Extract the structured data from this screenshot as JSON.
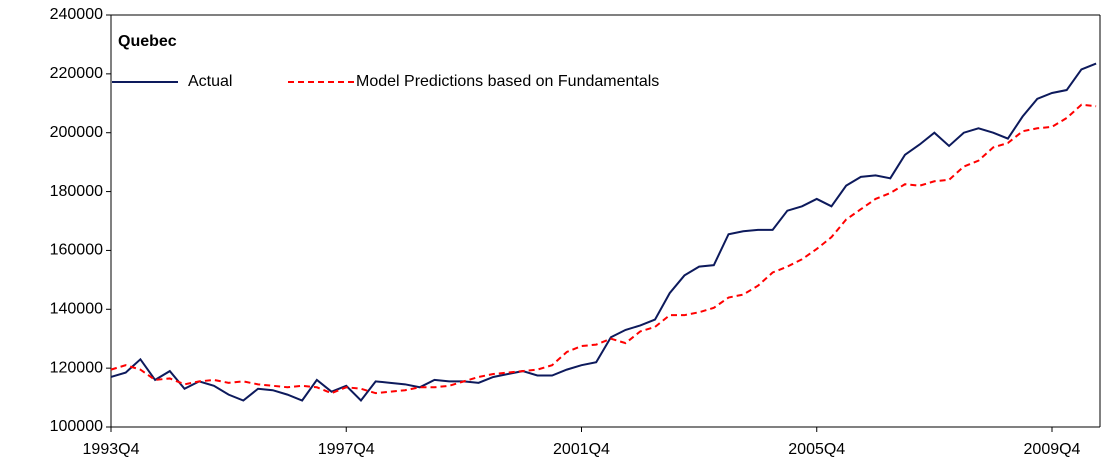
{
  "chart_data": {
    "type": "line",
    "title": "Quebec",
    "categories": [
      "1993Q4",
      null,
      null,
      null,
      null,
      null,
      null,
      null,
      null,
      null,
      null,
      null,
      null,
      null,
      null,
      null,
      "1997Q4",
      null,
      null,
      null,
      null,
      null,
      null,
      null,
      null,
      null,
      null,
      null,
      null,
      null,
      null,
      null,
      "2001Q4",
      null,
      null,
      null,
      null,
      null,
      null,
      null,
      null,
      null,
      null,
      null,
      null,
      null,
      null,
      null,
      "2005Q4",
      null,
      null,
      null,
      null,
      null,
      null,
      null,
      null,
      null,
      null,
      null,
      null,
      null,
      null,
      null,
      "2009Q4",
      null,
      null,
      null
    ],
    "series": [
      {
        "name": "Actual",
        "color": "#0d1a5c",
        "dash": false,
        "values": [
          117000,
          118500,
          123000,
          116000,
          119000,
          113000,
          115500,
          114000,
          111000,
          109000,
          113000,
          112500,
          111000,
          109000,
          116000,
          112000,
          114000,
          109000,
          115500,
          115000,
          114500,
          113500,
          116000,
          115500,
          115500,
          115000,
          117000,
          118000,
          119000,
          117500,
          117500,
          119500,
          121000,
          122000,
          130500,
          133000,
          134500,
          136500,
          145500,
          151500,
          154500,
          155000,
          165500,
          166500,
          167000,
          167000,
          173500,
          175000,
          177500,
          175000,
          182000,
          185000,
          185500,
          184500,
          192500,
          196000,
          200000,
          195500,
          200000,
          201500,
          200000,
          198000,
          205500,
          211500,
          213500,
          214500,
          221500,
          223500
        ]
      },
      {
        "name": "Model Predictions based on Fundamentals",
        "color": "#ff0000",
        "dash": true,
        "values": [
          119500,
          121000,
          119500,
          116000,
          116500,
          114500,
          115500,
          116000,
          115000,
          115500,
          114500,
          114000,
          113500,
          114000,
          113500,
          111500,
          113500,
          113000,
          111500,
          112000,
          112500,
          113500,
          113500,
          114000,
          115500,
          117000,
          118000,
          118500,
          119000,
          119500,
          121000,
          125500,
          127500,
          128000,
          130000,
          128500,
          132500,
          134000,
          138000,
          138000,
          139000,
          140500,
          144000,
          145000,
          148000,
          152500,
          154500,
          157000,
          160500,
          164500,
          170500,
          174000,
          177500,
          179500,
          182500,
          182000,
          183500,
          184000,
          188500,
          190500,
          195000,
          196500,
          200500,
          201500,
          202000,
          205000,
          209500,
          209000
        ]
      }
    ],
    "ylim": [
      100000,
      240000
    ],
    "yticks": [
      100000,
      120000,
      140000,
      160000,
      180000,
      200000,
      220000,
      240000
    ]
  }
}
